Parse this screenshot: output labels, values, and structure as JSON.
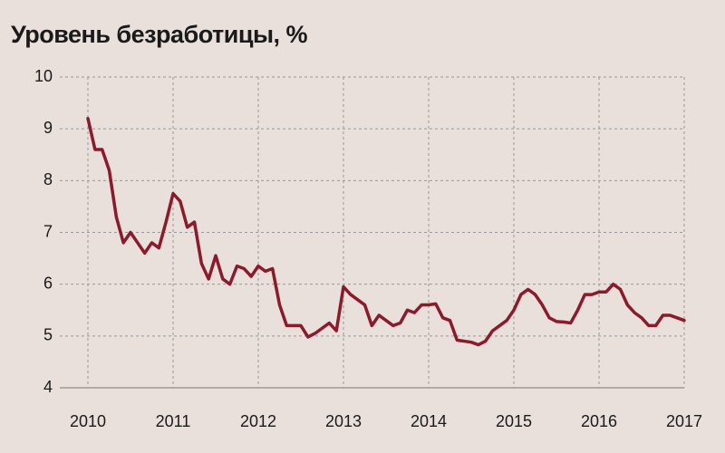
{
  "chart_data": {
    "type": "line",
    "title": "Уровень безработицы, %",
    "categories": [
      "2010",
      null,
      null,
      null,
      null,
      null,
      null,
      null,
      null,
      null,
      null,
      null,
      "2011",
      null,
      null,
      null,
      null,
      null,
      null,
      null,
      null,
      null,
      null,
      null,
      "2012",
      null,
      null,
      null,
      null,
      null,
      null,
      null,
      null,
      null,
      null,
      null,
      "2013",
      null,
      null,
      null,
      null,
      null,
      null,
      null,
      null,
      null,
      null,
      null,
      "2014",
      null,
      null,
      null,
      null,
      null,
      null,
      null,
      null,
      null,
      null,
      null,
      "2015",
      null,
      null,
      null,
      null,
      null,
      null,
      null,
      null,
      null,
      null,
      null,
      "2016",
      null,
      null,
      null,
      null,
      null,
      null,
      null,
      null,
      null,
      null,
      null,
      "2017"
    ],
    "series": [
      {
        "color": "#8b1a2b",
        "values": [
          9.2,
          8.6,
          8.6,
          8.2,
          7.3,
          6.8,
          7.0,
          6.8,
          6.6,
          6.8,
          6.7,
          7.2,
          7.75,
          7.6,
          7.1,
          7.2,
          6.4,
          6.1,
          6.55,
          6.1,
          6.0,
          6.35,
          6.3,
          6.15,
          6.35,
          6.25,
          6.3,
          5.6,
          5.2,
          5.2,
          5.2,
          4.98,
          5.05,
          5.15,
          5.25,
          5.1,
          5.95,
          5.8,
          5.7,
          5.6,
          5.2,
          5.4,
          5.3,
          5.2,
          5.25,
          5.5,
          5.45,
          5.6,
          5.6,
          5.62,
          5.35,
          5.3,
          4.92,
          4.9,
          4.88,
          4.83,
          4.9,
          5.1,
          5.2,
          5.3,
          5.5,
          5.8,
          5.9,
          5.8,
          5.6,
          5.35,
          5.28,
          5.27,
          5.25,
          5.5,
          5.8,
          5.8,
          5.85,
          5.85,
          6.0,
          5.9,
          5.6,
          5.45,
          5.35,
          5.2,
          5.2,
          5.4,
          5.4,
          5.35,
          5.3
        ]
      }
    ],
    "ylim": [
      4,
      10
    ],
    "yticks": [
      4,
      5,
      6,
      7,
      8,
      9,
      10
    ],
    "grid": true
  }
}
